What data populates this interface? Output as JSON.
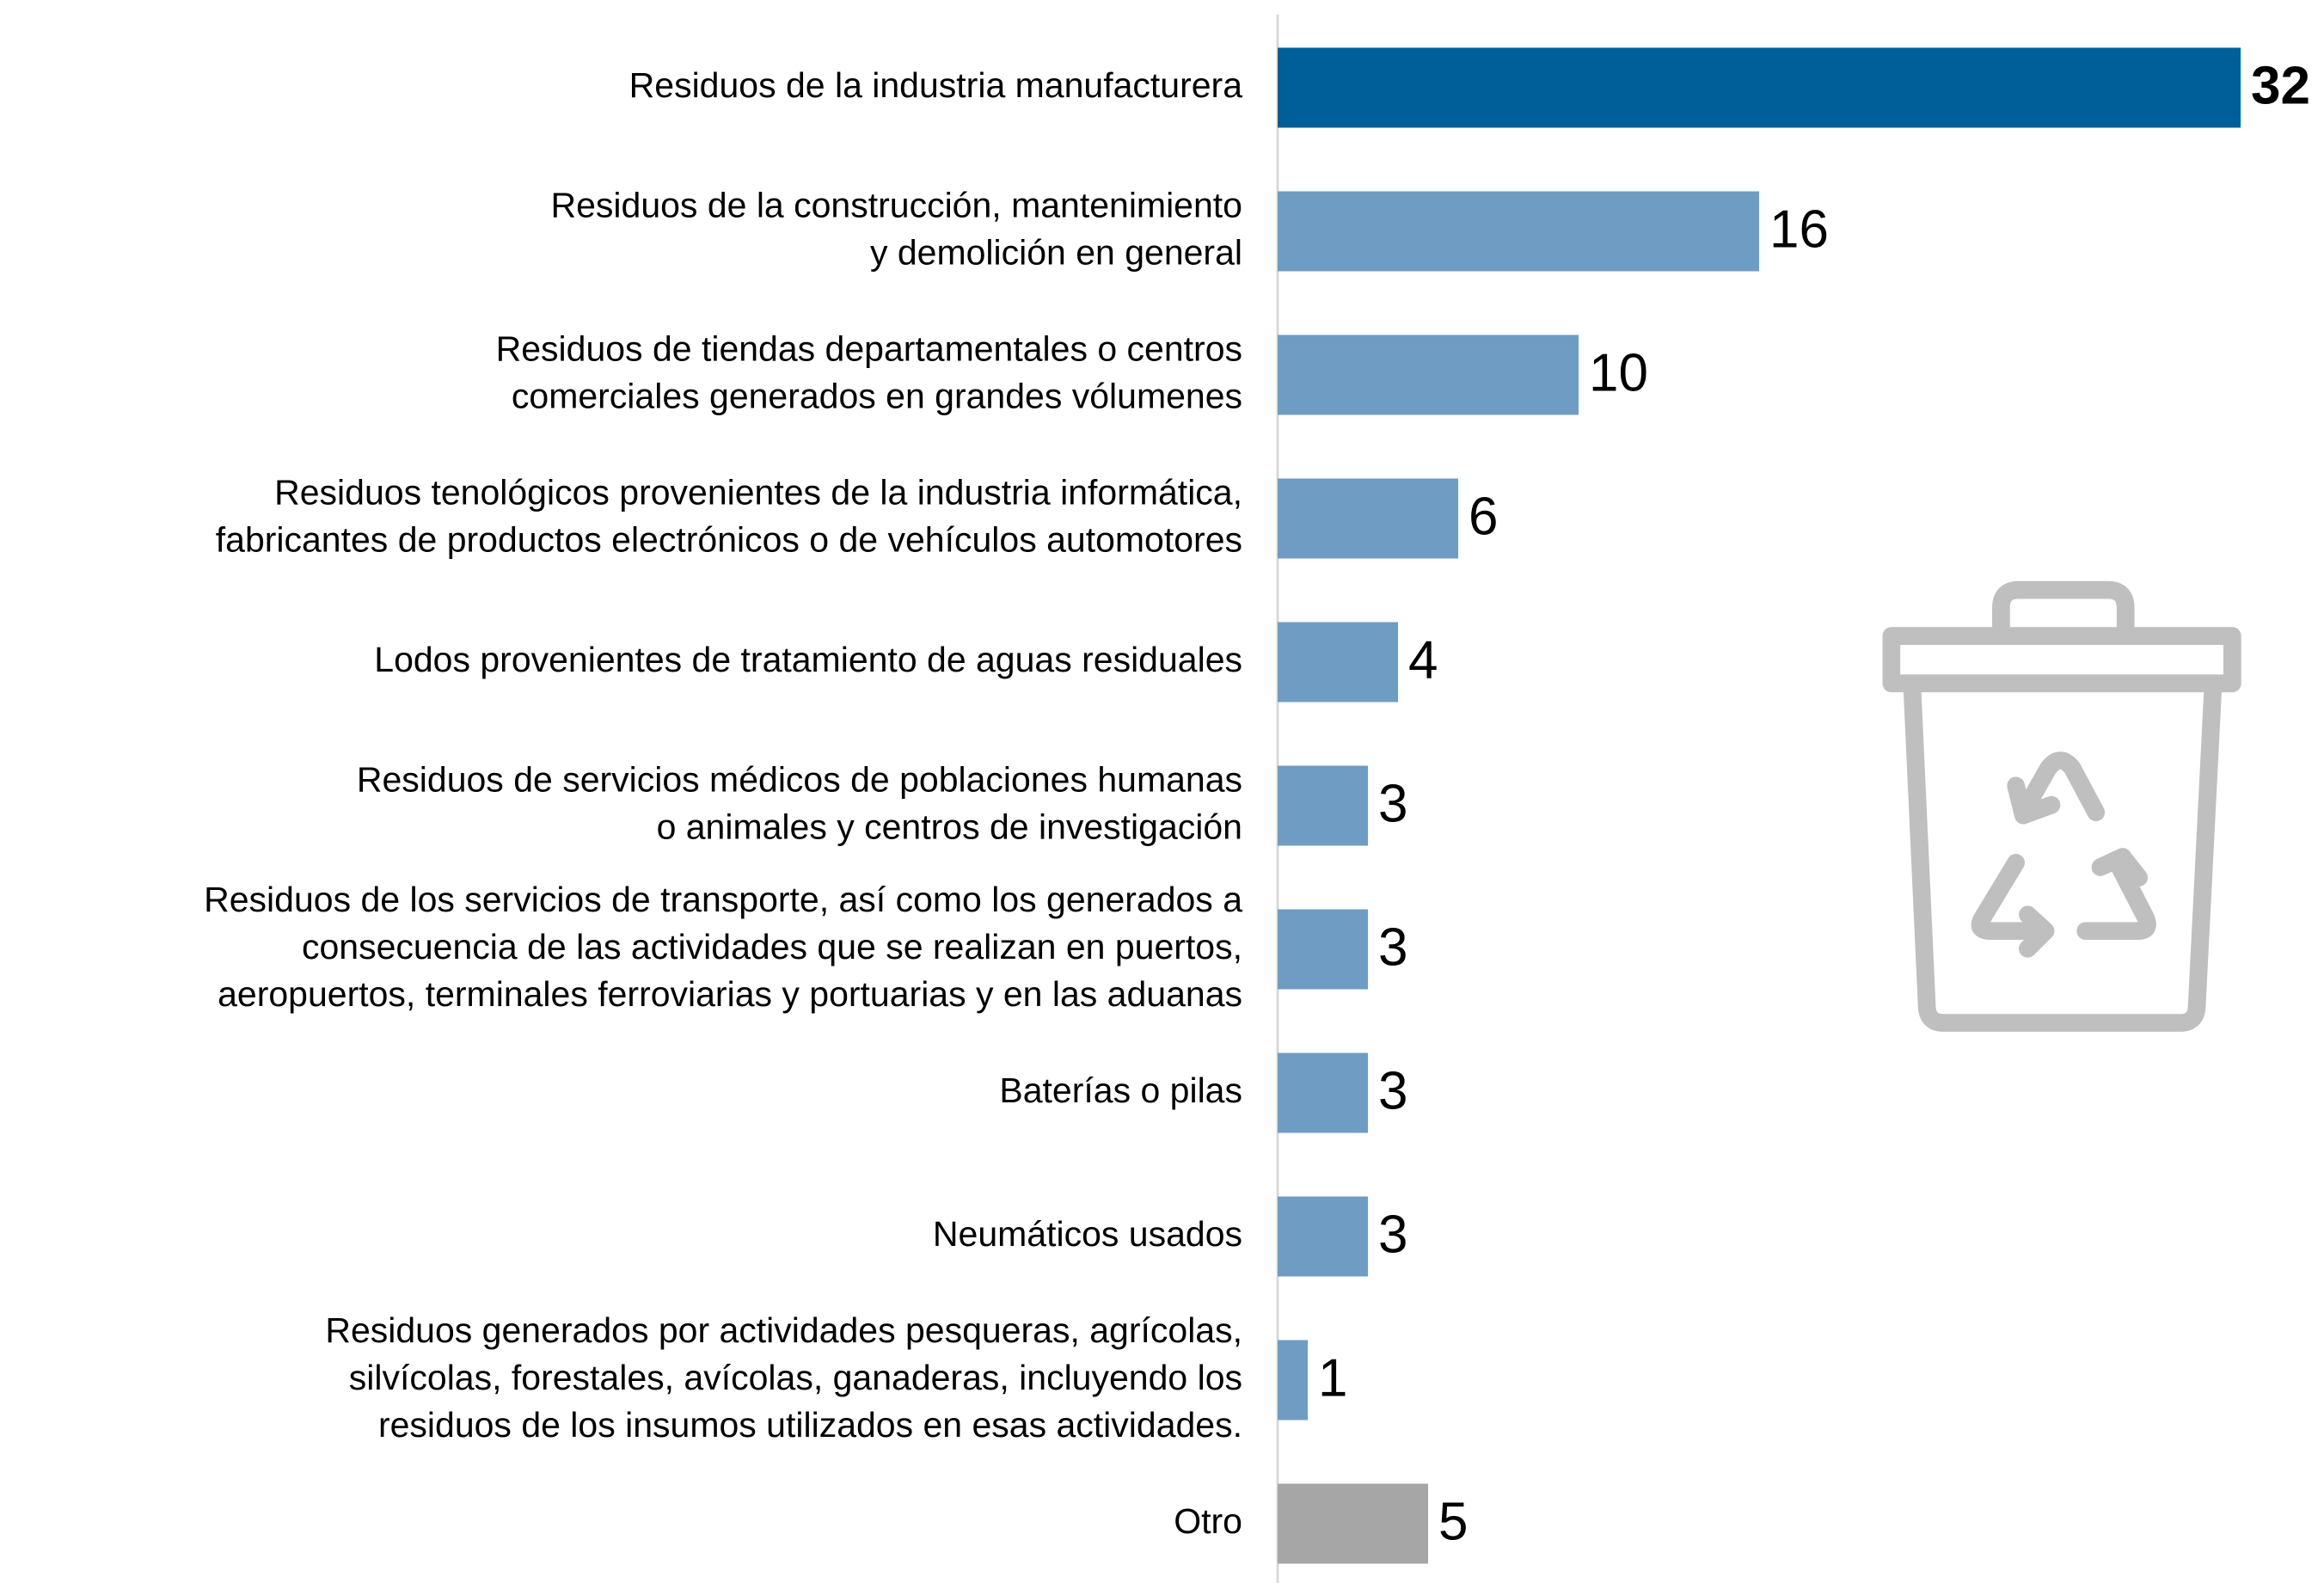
{
  "chart_data": {
    "type": "bar",
    "orientation": "horizontal",
    "categories": [
      "Residuos de la industria manufacturera",
      "Residuos de la construcción, mantenimiento\ny demolición en general",
      "Residuos de tiendas departamentales o centros\ncomerciales generados en grandes vólumenes",
      "Residuos tenológicos provenientes de la industria informática,\nfabricantes de productos electrónicos o de vehículos automotores",
      "Lodos provenientes de tratamiento de aguas residuales",
      "Residuos de servicios médicos de poblaciones humanas\no animales y centros de investigación",
      "Residuos de los servicios de transporte, así como los generados a\nconsecuencia de las actividades que se realizan en puertos,\naeropuertos, terminales ferroviarias y portuarias y en las aduanas",
      "Baterías o pilas",
      "Neumáticos usados",
      "Residuos generados por actividades pesqueras, agrícolas,\nsilvícolas, forestales, avícolas, ganaderas, incluyendo los\nresiduos de los insumos utilizados en esas actividades.",
      "Otro"
    ],
    "values": [
      32,
      16,
      10,
      6,
      4,
      3,
      3,
      3,
      3,
      1,
      5
    ],
    "colors": [
      "#005f99",
      "#6f9cc3",
      "#6f9cc3",
      "#6f9cc3",
      "#6f9cc3",
      "#6f9cc3",
      "#6f9cc3",
      "#6f9cc3",
      "#6f9cc3",
      "#6f9cc3",
      "#a6a6a6"
    ]
  }
}
